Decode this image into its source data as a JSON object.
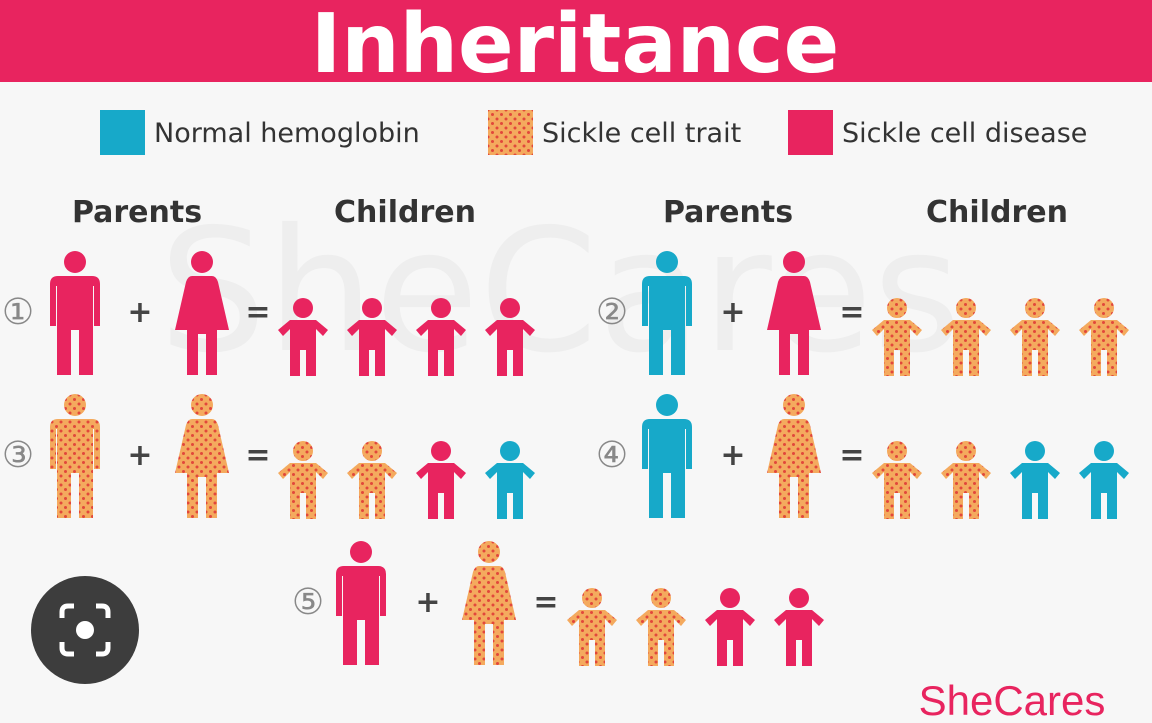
{
  "title": "Inheritance",
  "legend": [
    {
      "label": "Normal hemoglobin",
      "color": "#17a9c9"
    },
    {
      "label": "Sickle cell trait",
      "color": "#f4aa5e",
      "dot_color": "#e2473b"
    },
    {
      "label": "Sickle cell disease",
      "color": "#e8245f"
    }
  ],
  "column_headers": {
    "parents": "Parents",
    "children": "Children"
  },
  "operators": {
    "plus": "+",
    "equals": "="
  },
  "scenarios": [
    {
      "label": "①",
      "father": "Sickle cell disease",
      "mother": "Sickle cell disease",
      "children": [
        "Sickle cell disease",
        "Sickle cell disease",
        "Sickle cell disease",
        "Sickle cell disease"
      ]
    },
    {
      "label": "②",
      "father": "Normal hemoglobin",
      "mother": "Sickle cell disease",
      "children": [
        "Sickle cell trait",
        "Sickle cell trait",
        "Sickle cell trait",
        "Sickle cell trait"
      ]
    },
    {
      "label": "③",
      "father": "Sickle cell trait",
      "mother": "Sickle cell trait",
      "children": [
        "Sickle cell trait",
        "Sickle cell trait",
        "Sickle cell disease",
        "Normal hemoglobin"
      ]
    },
    {
      "label": "④",
      "father": "Normal hemoglobin",
      "mother": "Sickle cell trait",
      "children": [
        "Sickle cell trait",
        "Sickle cell trait",
        "Normal hemoglobin",
        "Normal hemoglobin"
      ]
    },
    {
      "label": "⑤",
      "father": "Sickle cell disease",
      "mother": "Sickle cell trait",
      "children": [
        "Sickle cell trait",
        "Sickle cell trait",
        "Sickle cell disease",
        "Sickle cell disease"
      ]
    }
  ],
  "watermark": "SheCares",
  "logo": "SheCares"
}
